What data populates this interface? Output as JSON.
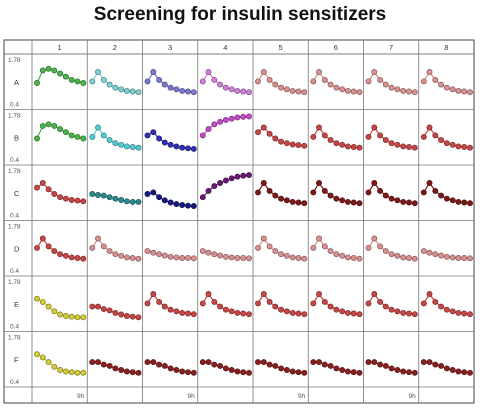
{
  "title": "Screening for insulin sensitizers",
  "chart_data": {
    "type": "line",
    "description_layout": "8x6 plate grid of small-multiple time-course plots",
    "columns": [
      "1",
      "2",
      "3",
      "4",
      "5",
      "6",
      "7",
      "8"
    ],
    "rows": [
      "A",
      "B",
      "C",
      "D",
      "E",
      "F"
    ],
    "ylim": [
      0.4,
      1.78
    ],
    "y_tick_labels": [
      "1.78",
      "0.4"
    ],
    "x_end_label": "9h",
    "curve_shapes": {
      "peak": [
        1.05,
        1.45,
        1.5,
        1.45,
        1.35,
        1.25,
        1.15,
        1.1,
        1.05
      ],
      "decay": [
        1.1,
        1.4,
        1.15,
        1.0,
        0.9,
        0.85,
        0.8,
        0.78,
        0.76
      ],
      "decay_low": [
        1.15,
        1.25,
        1.05,
        0.92,
        0.85,
        0.8,
        0.76,
        0.74,
        0.72
      ],
      "decay_soft": [
        1.25,
        1.4,
        1.2,
        1.05,
        0.95,
        0.9,
        0.86,
        0.84,
        0.82
      ],
      "flat_low": [
        1.0,
        1.0,
        0.92,
        0.88,
        0.8,
        0.75,
        0.7,
        0.68,
        0.66
      ],
      "flat_mid": [
        1.05,
        1.02,
        1.0,
        0.95,
        0.9,
        0.86,
        0.82,
        0.8,
        0.8
      ],
      "rise": [
        0.95,
        1.15,
        1.3,
        1.4,
        1.48,
        1.55,
        1.6,
        1.63,
        1.65
      ],
      "rise_high": [
        1.15,
        1.35,
        1.5,
        1.58,
        1.64,
        1.68,
        1.72,
        1.74,
        1.75
      ],
      "slide": [
        1.25,
        1.15,
        1.0,
        0.85,
        0.75,
        0.7,
        0.68,
        0.66,
        0.66
      ],
      "drift": [
        1.0,
        0.95,
        0.9,
        0.86,
        0.82,
        0.8,
        0.78,
        0.78,
        0.77
      ],
      "decay_lowest": [
        1.05,
        1.1,
        0.95,
        0.85,
        0.78,
        0.73,
        0.7,
        0.68,
        0.67
      ]
    },
    "wells": [
      [
        {
          "shape": "peak",
          "color": "#49b54b"
        },
        {
          "shape": "decay",
          "color": "#7fd0d0"
        },
        {
          "shape": "decay",
          "color": "#7a78d0"
        },
        {
          "shape": "decay",
          "color": "#d07fd8"
        },
        {
          "shape": "decay",
          "color": "#d99090"
        },
        {
          "shape": "decay",
          "color": "#d99090"
        },
        {
          "shape": "decay",
          "color": "#d99090"
        },
        {
          "shape": "decay",
          "color": "#d99090"
        }
      ],
      [
        {
          "shape": "peak",
          "color": "#49b54b"
        },
        {
          "shape": "decay",
          "color": "#52cfd2"
        },
        {
          "shape": "decay_low",
          "color": "#2f2fb8"
        },
        {
          "shape": "rise_high",
          "color": "#c44ac8"
        },
        {
          "shape": "decay_soft",
          "color": "#c84646"
        },
        {
          "shape": "decay",
          "color": "#c84646"
        },
        {
          "shape": "decay",
          "color": "#c84646"
        },
        {
          "shape": "decay",
          "color": "#c84646"
        }
      ],
      [
        {
          "shape": "decay_soft",
          "color": "#c84646"
        },
        {
          "shape": "flat_mid",
          "color": "#2a8a8c"
        },
        {
          "shape": "decay_lowest",
          "color": "#18197f"
        },
        {
          "shape": "rise",
          "color": "#6a1a70"
        },
        {
          "shape": "decay",
          "color": "#7f1818"
        },
        {
          "shape": "decay",
          "color": "#7f1818"
        },
        {
          "shape": "decay",
          "color": "#7f1818"
        },
        {
          "shape": "decay",
          "color": "#7f1818"
        }
      ],
      [
        {
          "shape": "decay",
          "color": "#c84646"
        },
        {
          "shape": "decay",
          "color": "#d99090"
        },
        {
          "shape": "drift",
          "color": "#d99090"
        },
        {
          "shape": "drift",
          "color": "#d99090"
        },
        {
          "shape": "decay",
          "color": "#d99090"
        },
        {
          "shape": "decay",
          "color": "#d99090"
        },
        {
          "shape": "decay",
          "color": "#d99090"
        },
        {
          "shape": "drift",
          "color": "#d99090"
        }
      ],
      [
        {
          "shape": "slide",
          "color": "#d4cc3a"
        },
        {
          "shape": "flat_low",
          "color": "#c84646"
        },
        {
          "shape": "decay",
          "color": "#c84646"
        },
        {
          "shape": "decay",
          "color": "#c84646"
        },
        {
          "shape": "decay",
          "color": "#c84646"
        },
        {
          "shape": "decay",
          "color": "#c84646"
        },
        {
          "shape": "decay",
          "color": "#c84646"
        },
        {
          "shape": "decay",
          "color": "#c84646"
        }
      ],
      [
        {
          "shape": "slide",
          "color": "#d4cc3a"
        },
        {
          "shape": "flat_low",
          "color": "#8a1f1f"
        },
        {
          "shape": "flat_low",
          "color": "#8a1f1f"
        },
        {
          "shape": "flat_low",
          "color": "#8a1f1f"
        },
        {
          "shape": "flat_low",
          "color": "#8a1f1f"
        },
        {
          "shape": "flat_low",
          "color": "#8a1f1f"
        },
        {
          "shape": "flat_low",
          "color": "#8a1f1f"
        },
        {
          "shape": "flat_low",
          "color": "#8a1f1f"
        }
      ]
    ]
  }
}
